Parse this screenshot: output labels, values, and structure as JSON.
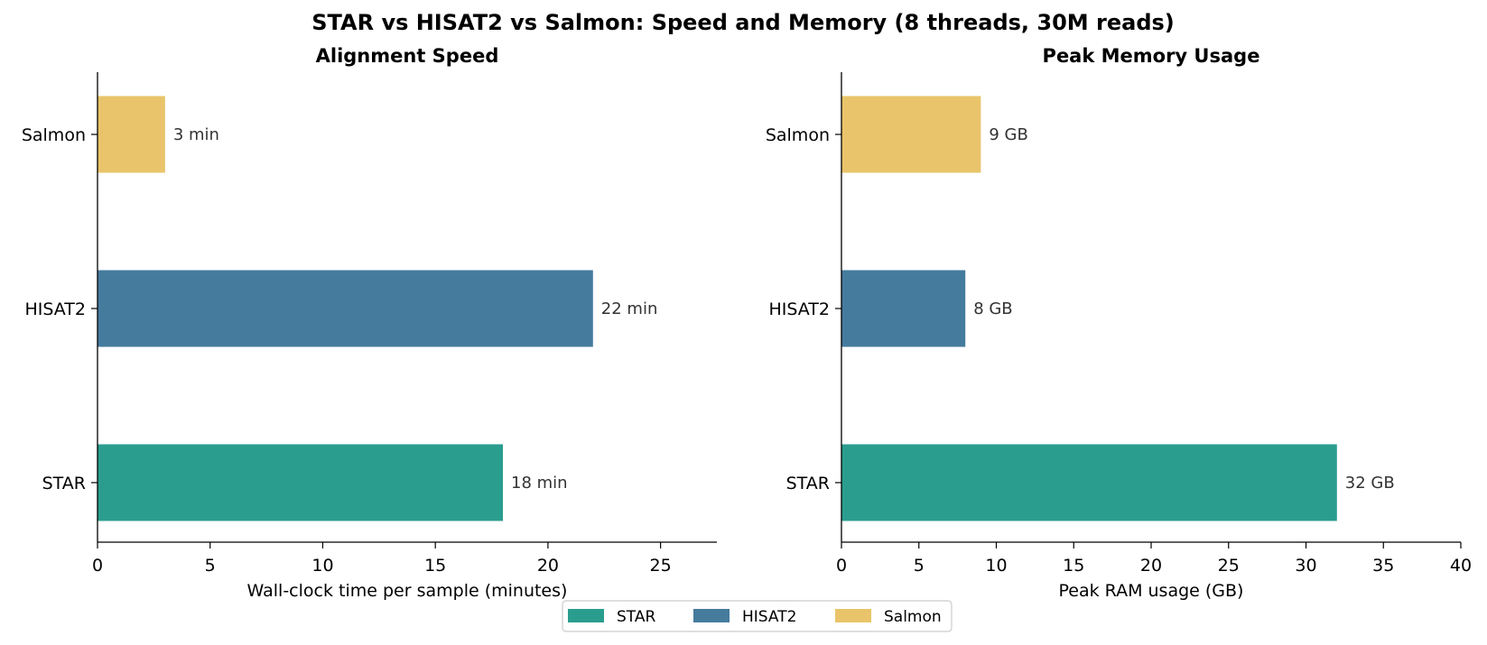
{
  "chart_data": {
    "type": "bar",
    "orientation": "horizontal",
    "suptitle": "STAR vs HISAT2 vs Salmon: Speed and Memory (8 threads, 30M reads)",
    "legend": {
      "placement": "bottom-center",
      "entries": [
        {
          "name": "STAR",
          "color": "#2a9d8f"
        },
        {
          "name": "HISAT2",
          "color": "#457b9d"
        },
        {
          "name": "Salmon",
          "color": "#e9c46a"
        }
      ]
    },
    "panels": [
      {
        "title": "Alignment Speed",
        "xlabel": "Wall-clock time per sample (minutes)",
        "xlim": [
          0,
          27.5
        ],
        "xticks": [
          0,
          5,
          10,
          15,
          20,
          25
        ],
        "grid": false,
        "categories": [
          "STAR",
          "HISAT2",
          "Salmon"
        ],
        "values": [
          18,
          22,
          3
        ],
        "value_labels": [
          "18 min",
          "22 min",
          "3 min"
        ],
        "colors": [
          "#2a9d8f",
          "#457b9d",
          "#e9c46a"
        ]
      },
      {
        "title": "Peak Memory Usage",
        "xlabel": "Peak RAM usage (GB)",
        "xlim": [
          0,
          40
        ],
        "xticks": [
          0,
          5,
          10,
          15,
          20,
          25,
          30,
          35,
          40
        ],
        "grid": false,
        "categories": [
          "STAR",
          "HISAT2",
          "Salmon"
        ],
        "values": [
          32,
          8,
          9
        ],
        "value_labels": [
          "32 GB",
          "8 GB",
          "9 GB"
        ],
        "colors": [
          "#2a9d8f",
          "#457b9d",
          "#e9c46a"
        ]
      }
    ]
  }
}
